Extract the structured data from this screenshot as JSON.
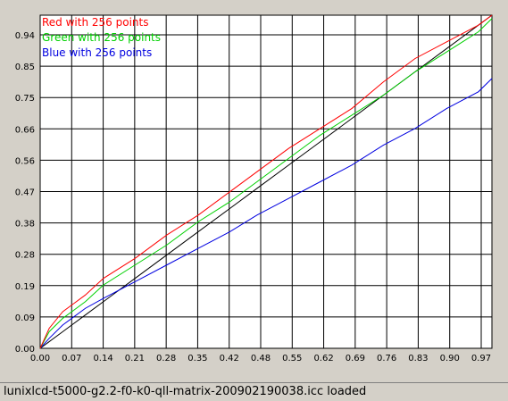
{
  "chart_data": {
    "type": "line",
    "title": "",
    "xlabel": "",
    "ylabel": "",
    "xlim": [
      0,
      1
    ],
    "ylim": [
      0,
      1
    ],
    "grid": true,
    "legend_position": "top-left",
    "x_ticks": [
      "0.00",
      "0.07",
      "0.14",
      "0.21",
      "0.28",
      "0.35",
      "0.42",
      "0.48",
      "0.55",
      "0.62",
      "0.69",
      "0.76",
      "0.83",
      "0.90",
      "0.97"
    ],
    "y_ticks": [
      "0.00",
      "0.09",
      "0.19",
      "0.28",
      "0.38",
      "0.47",
      "0.56",
      "0.66",
      "0.75",
      "0.85",
      "0.94"
    ],
    "x": [
      0,
      0.02,
      0.05,
      0.07,
      0.1,
      0.14,
      0.21,
      0.28,
      0.35,
      0.42,
      0.48,
      0.55,
      0.62,
      0.69,
      0.76,
      0.83,
      0.9,
      0.97,
      1.0
    ],
    "series": [
      {
        "name": "Red with 256 points",
        "color": "#ff0000",
        "values": [
          0,
          0.06,
          0.11,
          0.13,
          0.16,
          0.21,
          0.27,
          0.34,
          0.4,
          0.47,
          0.53,
          0.6,
          0.66,
          0.72,
          0.8,
          0.87,
          0.92,
          0.97,
          1.0
        ]
      },
      {
        "name": "Green with 256 points",
        "color": "#00d000",
        "values": [
          0,
          0.05,
          0.09,
          0.11,
          0.14,
          0.19,
          0.25,
          0.31,
          0.38,
          0.44,
          0.5,
          0.57,
          0.64,
          0.7,
          0.76,
          0.83,
          0.89,
          0.95,
          0.99
        ]
      },
      {
        "name": "Blue with 256 points",
        "color": "#0000e0",
        "values": [
          0,
          0.03,
          0.07,
          0.09,
          0.12,
          0.15,
          0.2,
          0.25,
          0.3,
          0.35,
          0.4,
          0.45,
          0.5,
          0.55,
          0.61,
          0.66,
          0.72,
          0.77,
          0.81
        ]
      },
      {
        "name": "",
        "color": "#000000",
        "values": [
          0,
          0.02,
          0.05,
          0.07,
          0.1,
          0.14,
          0.21,
          0.28,
          0.35,
          0.42,
          0.48,
          0.55,
          0.62,
          0.69,
          0.76,
          0.83,
          0.9,
          0.97,
          1.0
        ]
      }
    ]
  },
  "status": {
    "text": "lunixlcd-t5000-g2.2-f0-k0-qll-matrix-200902190038.icc loaded"
  }
}
